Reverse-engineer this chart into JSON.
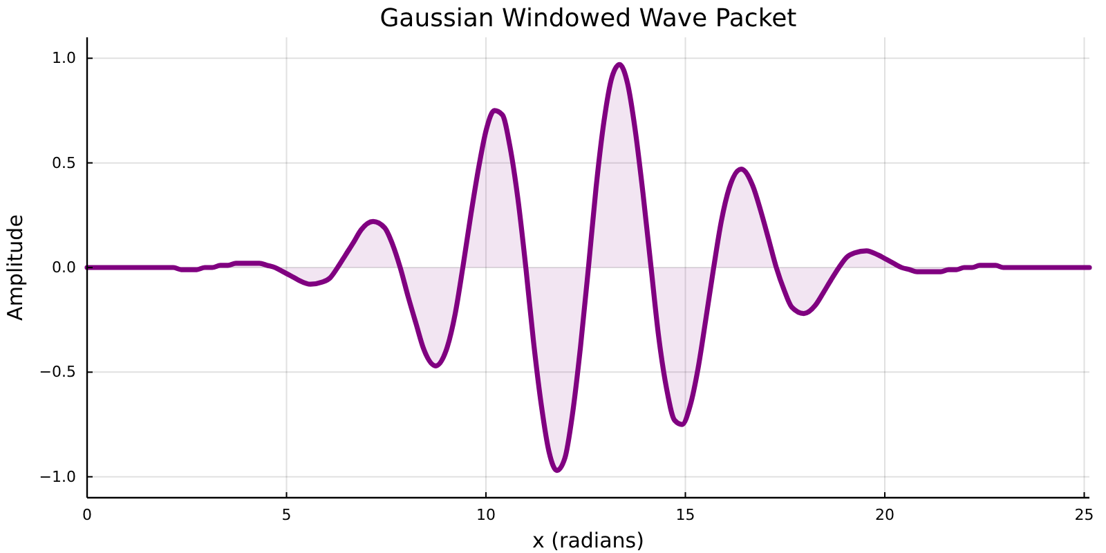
{
  "chart_data": {
    "type": "area",
    "title": "Gaussian Windowed Wave Packet",
    "xlabel": "x (radians)",
    "ylabel": "Amplitude",
    "x": [
      0,
      0.2,
      0.39,
      0.59,
      0.79,
      0.98,
      1.18,
      1.37,
      1.57,
      1.77,
      1.96,
      2.16,
      2.36,
      2.55,
      2.75,
      2.95,
      3.14,
      3.34,
      3.53,
      3.73,
      3.93,
      4.12,
      4.32,
      4.52,
      4.71,
      4.91,
      5.11,
      5.3,
      5.6,
      5.89,
      6.09,
      6.28,
      6.48,
      6.68,
      6.87,
      7.17,
      7.46,
      7.66,
      7.85,
      8.05,
      8.25,
      8.44,
      8.74,
      9.03,
      9.23,
      9.42,
      9.62,
      9.82,
      10.01,
      10.21,
      10.41,
      10.6,
      10.8,
      11.0,
      11.19,
      11.39,
      11.58,
      11.78,
      11.98,
      12.17,
      12.37,
      12.57,
      12.76,
      12.96,
      13.16,
      13.35,
      13.55,
      13.74,
      13.94,
      14.14,
      14.33,
      14.53,
      14.73,
      14.92,
      15.12,
      15.32,
      15.51,
      15.71,
      15.9,
      16.1,
      16.4,
      16.69,
      16.89,
      17.08,
      17.28,
      17.48,
      17.67,
      17.97,
      18.26,
      18.46,
      18.65,
      18.85,
      19.05,
      19.24,
      19.54,
      19.83,
      20.03,
      20.22,
      20.42,
      20.62,
      20.81,
      21.01,
      21.21,
      21.4,
      21.6,
      21.8,
      21.99,
      22.19,
      22.38,
      22.58,
      22.78,
      22.97,
      23.17,
      23.37,
      23.56,
      23.76,
      23.95,
      24.15,
      24.35,
      24.54,
      24.74,
      24.94,
      25.13
    ],
    "series": [
      {
        "color": "#800080",
        "values": [
          0,
          0,
          0,
          0,
          0,
          0,
          0,
          0,
          0,
          0,
          0,
          0,
          -0.01,
          -0.01,
          -0.01,
          0,
          0,
          0.01,
          0.01,
          0.02,
          0.02,
          0.02,
          0.02,
          0.01,
          0,
          -0.02,
          -0.04,
          -0.06,
          -0.08,
          -0.07,
          -0.05,
          0,
          0.06,
          0.12,
          0.18,
          0.22,
          0.19,
          0.11,
          0,
          -0.14,
          -0.27,
          -0.39,
          -0.47,
          -0.38,
          -0.22,
          0,
          0.25,
          0.48,
          0.66,
          0.75,
          0.73,
          0.58,
          0.33,
          0,
          -0.35,
          -0.66,
          -0.88,
          -0.97,
          -0.91,
          -0.7,
          -0.38,
          0,
          0.38,
          0.7,
          0.91,
          0.97,
          0.88,
          0.66,
          0.35,
          0,
          -0.33,
          -0.58,
          -0.73,
          -0.75,
          -0.66,
          -0.48,
          -0.25,
          0,
          0.22,
          0.38,
          0.47,
          0.39,
          0.27,
          0.14,
          0,
          -0.11,
          -0.19,
          -0.22,
          -0.18,
          -0.12,
          -0.06,
          0,
          0.05,
          0.07,
          0.08,
          0.06,
          0.04,
          0.02,
          0,
          -0.01,
          -0.02,
          -0.02,
          -0.02,
          -0.02,
          -0.01,
          -0.01,
          0,
          0,
          0.01,
          0.01,
          0.01,
          0,
          0,
          0,
          0,
          0,
          0,
          0,
          0,
          0,
          0,
          0,
          0
        ]
      }
    ],
    "xlim": [
      0,
      25.13
    ],
    "ylim": [
      -1.1,
      1.1
    ],
    "xticks": [
      0,
      5,
      10,
      15,
      20,
      25
    ],
    "yticks": [
      {
        "value": -1,
        "label": "−1.0"
      },
      {
        "value": -0.5,
        "label": "−0.5"
      },
      {
        "value": 0,
        "label": "0.0"
      },
      {
        "value": 0.5,
        "label": "0.5"
      },
      {
        "value": 1,
        "label": "1.0"
      }
    ],
    "grid": true,
    "line_style": "solid"
  }
}
